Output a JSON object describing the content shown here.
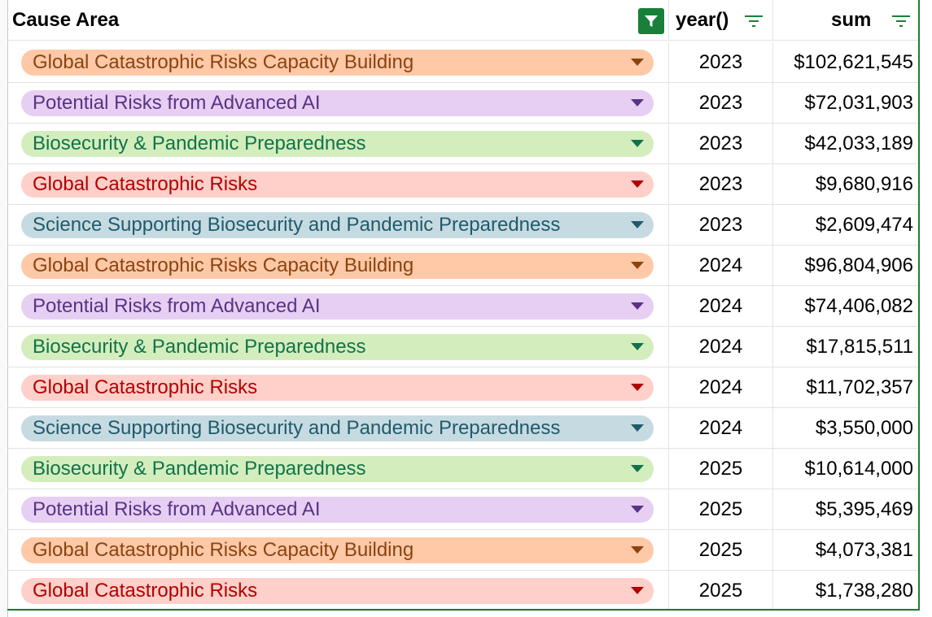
{
  "header": {
    "cause_area": "Cause Area",
    "year": "year()",
    "sum": "sum"
  },
  "colors": {
    "accent_green": "#188038",
    "Global Catastrophic Risks Capacity Building": {
      "bg": "#ffc8a6",
      "fg": "#8a4411"
    },
    "Potential Risks from Advanced AI": {
      "bg": "#e6cff2",
      "fg": "#5a3286"
    },
    "Biosecurity & Pandemic Preparedness": {
      "bg": "#d4edbc",
      "fg": "#11734b"
    },
    "Global Catastrophic Risks": {
      "bg": "#ffcfc9",
      "fg": "#b10202"
    },
    "Science Supporting Biosecurity and Pandemic Preparedness": {
      "bg": "#c6dbe1",
      "fg": "#215a6c"
    }
  },
  "icons": {
    "cause_filter": "filter-funnel-icon",
    "year_sort": "filter-lines-icon",
    "sum_sort": "filter-lines-icon",
    "chip_dropdown": "chevron-down-icon"
  },
  "rows": [
    {
      "cause": "Global Catastrophic Risks Capacity Building",
      "year": "2023",
      "sum": "$102,621,545"
    },
    {
      "cause": "Potential Risks from Advanced AI",
      "year": "2023",
      "sum": "$72,031,903"
    },
    {
      "cause": "Biosecurity & Pandemic Preparedness",
      "year": "2023",
      "sum": "$42,033,189"
    },
    {
      "cause": "Global Catastrophic Risks",
      "year": "2023",
      "sum": "$9,680,916"
    },
    {
      "cause": "Science Supporting Biosecurity and Pandemic Preparedness",
      "year": "2023",
      "sum": "$2,609,474"
    },
    {
      "cause": "Global Catastrophic Risks Capacity Building",
      "year": "2024",
      "sum": "$96,804,906"
    },
    {
      "cause": "Potential Risks from Advanced AI",
      "year": "2024",
      "sum": "$74,406,082"
    },
    {
      "cause": "Biosecurity & Pandemic Preparedness",
      "year": "2024",
      "sum": "$17,815,511"
    },
    {
      "cause": "Global Catastrophic Risks",
      "year": "2024",
      "sum": "$11,702,357"
    },
    {
      "cause": "Science Supporting Biosecurity and Pandemic Preparedness",
      "year": "2024",
      "sum": "$3,550,000"
    },
    {
      "cause": "Biosecurity & Pandemic Preparedness",
      "year": "2025",
      "sum": "$10,614,000"
    },
    {
      "cause": "Potential Risks from Advanced AI",
      "year": "2025",
      "sum": "$5,395,469"
    },
    {
      "cause": "Global Catastrophic Risks Capacity Building",
      "year": "2025",
      "sum": "$4,073,381"
    },
    {
      "cause": "Global Catastrophic Risks",
      "year": "2025",
      "sum": "$1,738,280"
    }
  ]
}
